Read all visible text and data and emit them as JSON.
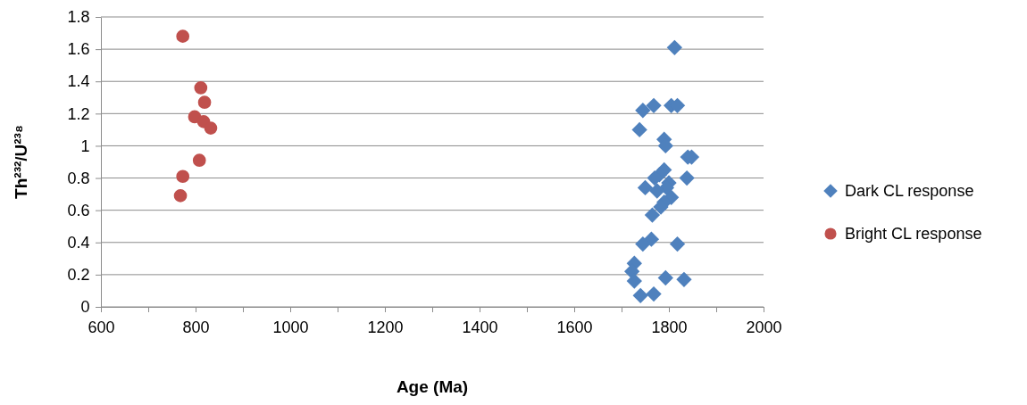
{
  "chart_data": {
    "type": "scatter",
    "xlabel": "Age (Ma)",
    "ylabel": "Th²³²/U²³⁸",
    "xlim": [
      600,
      2000
    ],
    "xticks": [
      600,
      {
        "value": 700,
        "label": null
      },
      800,
      {
        "value": 900,
        "label": null
      },
      1000,
      {
        "value": 1100,
        "label": null
      },
      1200,
      {
        "value": 1300,
        "label": null
      },
      1400,
      {
        "value": 1500,
        "label": null
      },
      1600,
      {
        "value": 1700,
        "label": null
      },
      1800,
      {
        "value": 1900,
        "label": null
      },
      2000
    ],
    "ylim": [
      0,
      1.8
    ],
    "yticks": [
      0,
      0.2,
      0.4,
      0.6,
      0.8,
      1,
      1.2,
      1.4,
      1.6,
      1.8
    ],
    "grid": "y",
    "legend": "right",
    "series": [
      {
        "name": "Dark CL response",
        "color": "#4f81bd",
        "marker": "diamond",
        "x": [
          1812,
          1745,
          1768,
          1805,
          1818,
          1738,
          1790,
          1793,
          1840,
          1848,
          1838,
          1790,
          1780,
          1770,
          1750,
          1800,
          1795,
          1775,
          1805,
          1790,
          1783,
          1765,
          1763,
          1745,
          1818,
          1727,
          1722,
          1727,
          1793,
          1832,
          1740,
          1768
        ],
        "values": [
          1.61,
          1.22,
          1.25,
          1.25,
          1.25,
          1.1,
          1.04,
          1.0,
          0.93,
          0.93,
          0.8,
          0.85,
          0.82,
          0.8,
          0.74,
          0.77,
          0.74,
          0.72,
          0.68,
          0.65,
          0.62,
          0.57,
          0.42,
          0.39,
          0.39,
          0.27,
          0.22,
          0.16,
          0.18,
          0.17,
          0.07,
          0.08
        ]
      },
      {
        "name": "Bright CL response",
        "color": "#c0504d",
        "marker": "circle",
        "x": [
          773,
          811,
          819,
          798,
          817,
          832,
          808,
          773,
          768
        ],
        "values": [
          1.68,
          1.36,
          1.27,
          1.18,
          1.15,
          1.11,
          0.91,
          0.81,
          0.69
        ]
      }
    ]
  }
}
